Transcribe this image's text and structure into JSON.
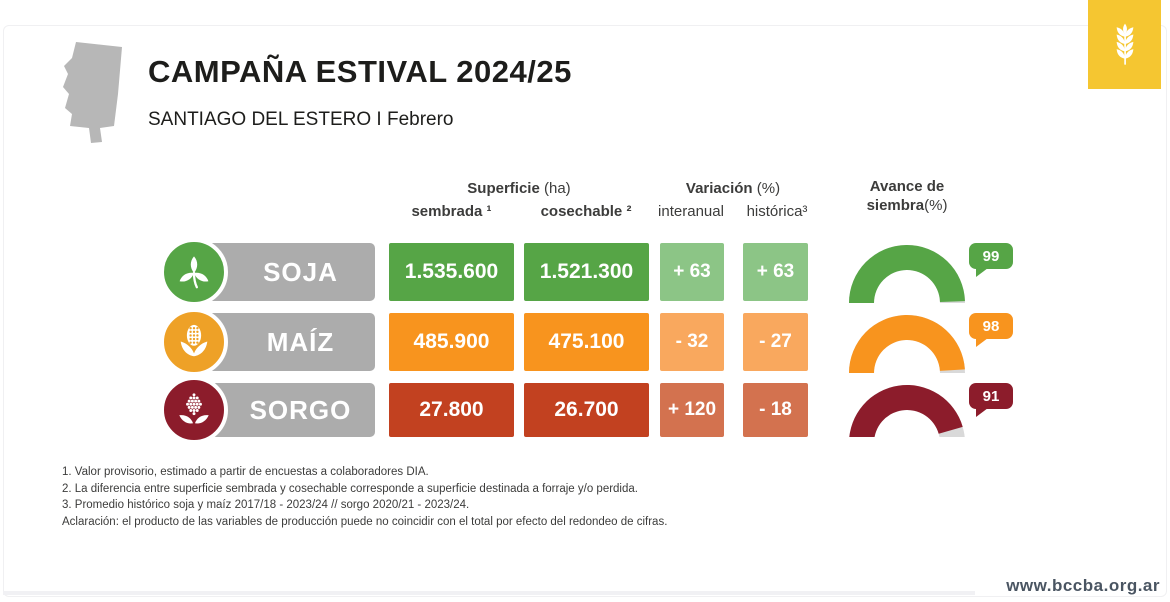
{
  "brand": {
    "logo_icon": "wheat-icon",
    "logo_bg": "#f5c631",
    "website": "www.bccba.org.ar"
  },
  "header": {
    "title": "CAMPAÑA ESTIVAL 2024/25",
    "subtitle": "SANTIAGO DEL ESTERO I Febrero",
    "map_icon": "santiago-del-estero-map",
    "map_color": "#b7b7b7"
  },
  "table": {
    "groups": {
      "superficie": {
        "label": "Superficie",
        "unit": "(ha)"
      },
      "variacion": {
        "label": "Variación",
        "unit": "(%)"
      },
      "avance": {
        "line1": "Avance de",
        "line2": "siembra",
        "unit": "(%)"
      }
    },
    "subheaders": {
      "sembrada": "sembrada ¹",
      "cosechable": "cosechable ²",
      "interanual": "interanual",
      "historica": "histórica³"
    },
    "label_bar_color": "#acacac",
    "gauge_track_color": "#d9d9d9",
    "rows": [
      {
        "crop": "SOJA",
        "icon": "soybean-icon",
        "icon_bg": "#56a546",
        "value_color": "#56a546",
        "variation_color": "#8cc586",
        "gauge_color": "#56a546",
        "sembrada": "1.535.600",
        "cosechable": "1.521.300",
        "interanual": "+ 63",
        "historica": "+ 63",
        "avance_pct": 99
      },
      {
        "crop": "MAÍZ",
        "icon": "corn-icon",
        "icon_bg": "#eea127",
        "value_color": "#f8941e",
        "variation_color": "#f9a85e",
        "gauge_color": "#f8941e",
        "sembrada": "485.900",
        "cosechable": "475.100",
        "interanual": "- 32",
        "historica": "- 27",
        "avance_pct": 98
      },
      {
        "crop": "SORGO",
        "icon": "sorghum-icon",
        "icon_bg": "#8c1c2b",
        "value_color": "#c24120",
        "variation_color": "#d3724f",
        "gauge_color": "#8c1c2b",
        "sembrada": "27.800",
        "cosechable": "26.700",
        "interanual": "+ 120",
        "historica": "- 18",
        "avance_pct": 91
      }
    ]
  },
  "footnotes": [
    "1. Valor provisorio, estimado a partir de encuestas a colaboradores DIA.",
    "2. La diferencia entre superficie sembrada y cosechable corresponde a superficie destinada a forraje y/o perdida.",
    "3. Promedio histórico soja y maíz 2017/18 - 2023/24 // sorgo 2020/21 - 2023/24.",
    "Aclaración: el producto de las variables de producción puede no coincidir con el total por efecto del redondeo de cifras."
  ],
  "chart_data": {
    "type": "table",
    "title": "CAMPAÑA ESTIVAL 2024/25 — SANTIAGO DEL ESTERO I Febrero",
    "columns": [
      "cultivo",
      "superficie sembrada (ha)",
      "superficie cosechable (ha)",
      "variación interanual (%)",
      "variación histórica (%)",
      "avance de siembra (%)"
    ],
    "rows": [
      [
        "SOJA",
        1535600,
        1521300,
        63,
        63,
        99
      ],
      [
        "MAÍZ",
        485900,
        475100,
        -32,
        -27,
        98
      ],
      [
        "SORGO",
        27800,
        26700,
        120,
        -18,
        91
      ]
    ]
  }
}
